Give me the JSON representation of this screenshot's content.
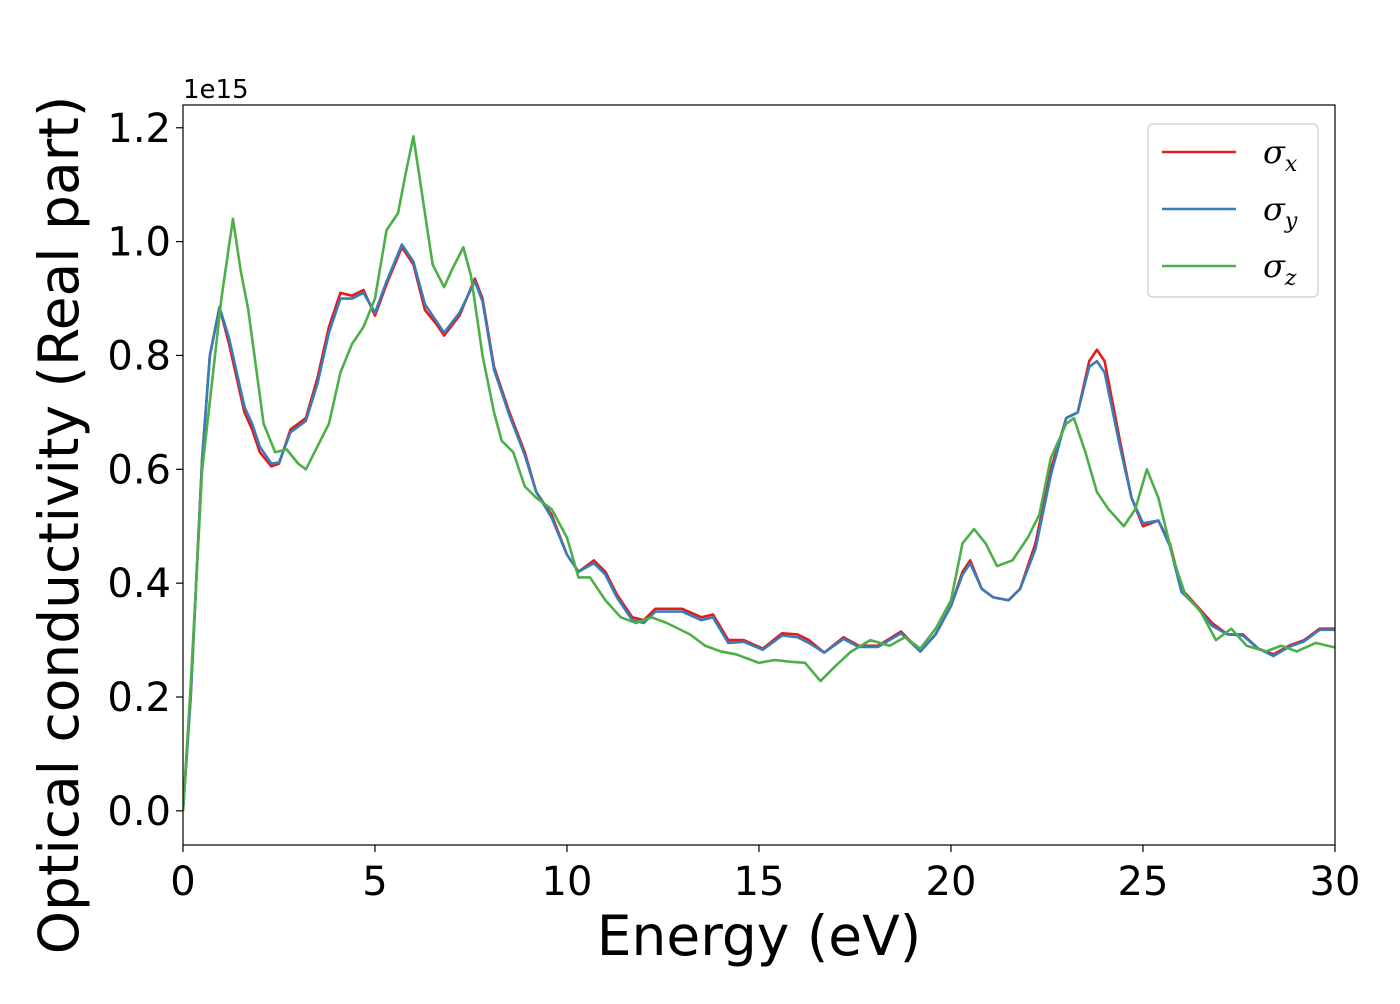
{
  "chart_data": {
    "type": "line",
    "xlabel": "Energy (eV)",
    "ylabel": "Optical conductivity (Real part)",
    "y_offset_label": "1e15",
    "xlim": [
      0,
      30
    ],
    "ylim": [
      -0.06,
      1.24
    ],
    "x_ticks": [
      0,
      5,
      10,
      15,
      20,
      25,
      30
    ],
    "x_tick_labels": [
      "0",
      "5",
      "10",
      "15",
      "20",
      "25",
      "30"
    ],
    "y_ticks": [
      0.0,
      0.2,
      0.4,
      0.6,
      0.8,
      1.0,
      1.2
    ],
    "y_tick_labels": [
      "0.0",
      "0.2",
      "0.4",
      "0.6",
      "0.8",
      "1.0",
      "1.2"
    ],
    "grid": false,
    "legend_position": "top-right",
    "series": [
      {
        "name": "σx",
        "label_main": "σ",
        "label_sub": "x",
        "color": "#e41a1c",
        "points": [
          [
            0,
            0
          ],
          [
            0.2,
            0.2
          ],
          [
            0.5,
            0.62
          ],
          [
            0.7,
            0.8
          ],
          [
            0.95,
            0.885
          ],
          [
            1.2,
            0.82
          ],
          [
            1.6,
            0.7
          ],
          [
            1.8,
            0.67
          ],
          [
            2.0,
            0.63
          ],
          [
            2.3,
            0.605
          ],
          [
            2.5,
            0.61
          ],
          [
            2.8,
            0.67
          ],
          [
            3.2,
            0.69
          ],
          [
            3.5,
            0.76
          ],
          [
            3.8,
            0.85
          ],
          [
            4.1,
            0.91
          ],
          [
            4.4,
            0.905
          ],
          [
            4.7,
            0.915
          ],
          [
            5.0,
            0.87
          ],
          [
            5.3,
            0.925
          ],
          [
            5.7,
            0.99
          ],
          [
            6.0,
            0.96
          ],
          [
            6.3,
            0.88
          ],
          [
            6.6,
            0.855
          ],
          [
            6.8,
            0.835
          ],
          [
            7.2,
            0.87
          ],
          [
            7.6,
            0.935
          ],
          [
            7.8,
            0.9
          ],
          [
            8.1,
            0.78
          ],
          [
            8.5,
            0.7
          ],
          [
            8.9,
            0.63
          ],
          [
            9.2,
            0.56
          ],
          [
            9.6,
            0.52
          ],
          [
            10.0,
            0.45
          ],
          [
            10.3,
            0.42
          ],
          [
            10.7,
            0.44
          ],
          [
            11.0,
            0.42
          ],
          [
            11.3,
            0.38
          ],
          [
            11.7,
            0.34
          ],
          [
            12.0,
            0.335
          ],
          [
            12.3,
            0.355
          ],
          [
            13.0,
            0.355
          ],
          [
            13.5,
            0.34
          ],
          [
            13.8,
            0.345
          ],
          [
            14.2,
            0.3
          ],
          [
            14.6,
            0.3
          ],
          [
            15.1,
            0.285
          ],
          [
            15.6,
            0.312
          ],
          [
            16.0,
            0.31
          ],
          [
            16.3,
            0.3
          ],
          [
            16.7,
            0.278
          ],
          [
            17.2,
            0.305
          ],
          [
            17.6,
            0.29
          ],
          [
            18.1,
            0.29
          ],
          [
            18.7,
            0.315
          ],
          [
            19.2,
            0.28
          ],
          [
            19.6,
            0.31
          ],
          [
            20.0,
            0.36
          ],
          [
            20.3,
            0.42
          ],
          [
            20.5,
            0.44
          ],
          [
            20.8,
            0.39
          ],
          [
            21.1,
            0.375
          ],
          [
            21.5,
            0.37
          ],
          [
            21.8,
            0.39
          ],
          [
            22.2,
            0.47
          ],
          [
            22.6,
            0.6
          ],
          [
            23.0,
            0.69
          ],
          [
            23.3,
            0.7
          ],
          [
            23.6,
            0.79
          ],
          [
            23.8,
            0.81
          ],
          [
            24.0,
            0.79
          ],
          [
            24.4,
            0.65
          ],
          [
            24.7,
            0.55
          ],
          [
            25.0,
            0.5
          ],
          [
            25.4,
            0.51
          ],
          [
            25.7,
            0.47
          ],
          [
            26.0,
            0.39
          ],
          [
            26.4,
            0.36
          ],
          [
            26.8,
            0.33
          ],
          [
            27.2,
            0.31
          ],
          [
            27.6,
            0.31
          ],
          [
            28.0,
            0.285
          ],
          [
            28.4,
            0.275
          ],
          [
            28.8,
            0.29
          ],
          [
            29.2,
            0.3
          ],
          [
            29.6,
            0.32
          ],
          [
            30.0,
            0.32
          ]
        ]
      },
      {
        "name": "σy",
        "label_main": "σ",
        "label_sub": "y",
        "color": "#377eb8",
        "points": [
          [
            0,
            0
          ],
          [
            0.2,
            0.2
          ],
          [
            0.5,
            0.62
          ],
          [
            0.7,
            0.8
          ],
          [
            0.95,
            0.885
          ],
          [
            1.2,
            0.83
          ],
          [
            1.6,
            0.71
          ],
          [
            1.8,
            0.68
          ],
          [
            2.0,
            0.64
          ],
          [
            2.3,
            0.61
          ],
          [
            2.5,
            0.612
          ],
          [
            2.8,
            0.665
          ],
          [
            3.2,
            0.685
          ],
          [
            3.5,
            0.75
          ],
          [
            3.8,
            0.84
          ],
          [
            4.1,
            0.9
          ],
          [
            4.4,
            0.9
          ],
          [
            4.7,
            0.91
          ],
          [
            5.0,
            0.875
          ],
          [
            5.3,
            0.93
          ],
          [
            5.7,
            0.995
          ],
          [
            6.0,
            0.965
          ],
          [
            6.3,
            0.89
          ],
          [
            6.6,
            0.86
          ],
          [
            6.8,
            0.84
          ],
          [
            7.2,
            0.875
          ],
          [
            7.6,
            0.93
          ],
          [
            7.8,
            0.895
          ],
          [
            8.1,
            0.775
          ],
          [
            8.5,
            0.695
          ],
          [
            8.9,
            0.625
          ],
          [
            9.2,
            0.56
          ],
          [
            9.6,
            0.515
          ],
          [
            10.0,
            0.45
          ],
          [
            10.3,
            0.42
          ],
          [
            10.7,
            0.435
          ],
          [
            11.0,
            0.415
          ],
          [
            11.3,
            0.375
          ],
          [
            11.7,
            0.335
          ],
          [
            12.0,
            0.33
          ],
          [
            12.3,
            0.35
          ],
          [
            13.0,
            0.35
          ],
          [
            13.5,
            0.335
          ],
          [
            13.8,
            0.34
          ],
          [
            14.2,
            0.295
          ],
          [
            14.6,
            0.297
          ],
          [
            15.1,
            0.283
          ],
          [
            15.6,
            0.308
          ],
          [
            16.0,
            0.305
          ],
          [
            16.3,
            0.295
          ],
          [
            16.7,
            0.278
          ],
          [
            17.2,
            0.302
          ],
          [
            17.6,
            0.288
          ],
          [
            18.1,
            0.288
          ],
          [
            18.7,
            0.312
          ],
          [
            19.2,
            0.28
          ],
          [
            19.6,
            0.31
          ],
          [
            20.0,
            0.36
          ],
          [
            20.3,
            0.415
          ],
          [
            20.5,
            0.435
          ],
          [
            20.8,
            0.39
          ],
          [
            21.1,
            0.375
          ],
          [
            21.5,
            0.37
          ],
          [
            21.8,
            0.39
          ],
          [
            22.2,
            0.46
          ],
          [
            22.6,
            0.59
          ],
          [
            23.0,
            0.69
          ],
          [
            23.3,
            0.7
          ],
          [
            23.6,
            0.78
          ],
          [
            23.8,
            0.79
          ],
          [
            24.0,
            0.77
          ],
          [
            24.4,
            0.64
          ],
          [
            24.7,
            0.55
          ],
          [
            25.0,
            0.505
          ],
          [
            25.4,
            0.51
          ],
          [
            25.7,
            0.465
          ],
          [
            26.0,
            0.385
          ],
          [
            26.4,
            0.358
          ],
          [
            26.8,
            0.325
          ],
          [
            27.2,
            0.31
          ],
          [
            27.6,
            0.308
          ],
          [
            28.0,
            0.285
          ],
          [
            28.4,
            0.272
          ],
          [
            28.8,
            0.288
          ],
          [
            29.2,
            0.298
          ],
          [
            29.6,
            0.318
          ],
          [
            30.0,
            0.318
          ]
        ]
      },
      {
        "name": "σz",
        "label_main": "σ",
        "label_sub": "z",
        "color": "#4daf4a",
        "points": [
          [
            0,
            0
          ],
          [
            0.2,
            0.22
          ],
          [
            0.5,
            0.6
          ],
          [
            0.8,
            0.78
          ],
          [
            1.0,
            0.9
          ],
          [
            1.3,
            1.04
          ],
          [
            1.5,
            0.95
          ],
          [
            1.7,
            0.88
          ],
          [
            1.9,
            0.78
          ],
          [
            2.1,
            0.68
          ],
          [
            2.4,
            0.63
          ],
          [
            2.7,
            0.635
          ],
          [
            3.0,
            0.61
          ],
          [
            3.2,
            0.6
          ],
          [
            3.5,
            0.64
          ],
          [
            3.8,
            0.68
          ],
          [
            4.1,
            0.77
          ],
          [
            4.4,
            0.82
          ],
          [
            4.7,
            0.85
          ],
          [
            5.0,
            0.9
          ],
          [
            5.3,
            1.02
          ],
          [
            5.6,
            1.05
          ],
          [
            5.8,
            1.12
          ],
          [
            6.0,
            1.185
          ],
          [
            6.3,
            1.05
          ],
          [
            6.5,
            0.96
          ],
          [
            6.8,
            0.92
          ],
          [
            7.0,
            0.95
          ],
          [
            7.3,
            0.99
          ],
          [
            7.5,
            0.94
          ],
          [
            7.8,
            0.8
          ],
          [
            8.1,
            0.7
          ],
          [
            8.3,
            0.65
          ],
          [
            8.6,
            0.63
          ],
          [
            8.9,
            0.57
          ],
          [
            9.2,
            0.55
          ],
          [
            9.6,
            0.53
          ],
          [
            10.0,
            0.48
          ],
          [
            10.3,
            0.41
          ],
          [
            10.6,
            0.41
          ],
          [
            11.0,
            0.37
          ],
          [
            11.4,
            0.34
          ],
          [
            11.8,
            0.33
          ],
          [
            12.2,
            0.34
          ],
          [
            12.6,
            0.33
          ],
          [
            13.2,
            0.31
          ],
          [
            13.6,
            0.29
          ],
          [
            14.0,
            0.28
          ],
          [
            14.4,
            0.275
          ],
          [
            15.0,
            0.26
          ],
          [
            15.4,
            0.265
          ],
          [
            15.8,
            0.262
          ],
          [
            16.2,
            0.26
          ],
          [
            16.6,
            0.228
          ],
          [
            17.0,
            0.255
          ],
          [
            17.4,
            0.28
          ],
          [
            17.9,
            0.3
          ],
          [
            18.4,
            0.29
          ],
          [
            18.8,
            0.305
          ],
          [
            19.2,
            0.285
          ],
          [
            19.6,
            0.32
          ],
          [
            20.0,
            0.37
          ],
          [
            20.3,
            0.47
          ],
          [
            20.6,
            0.495
          ],
          [
            20.9,
            0.47
          ],
          [
            21.2,
            0.43
          ],
          [
            21.6,
            0.44
          ],
          [
            22.0,
            0.48
          ],
          [
            22.3,
            0.52
          ],
          [
            22.6,
            0.62
          ],
          [
            23.0,
            0.68
          ],
          [
            23.2,
            0.69
          ],
          [
            23.5,
            0.63
          ],
          [
            23.8,
            0.56
          ],
          [
            24.1,
            0.53
          ],
          [
            24.5,
            0.5
          ],
          [
            24.8,
            0.53
          ],
          [
            25.1,
            0.6
          ],
          [
            25.4,
            0.55
          ],
          [
            25.8,
            0.44
          ],
          [
            26.1,
            0.38
          ],
          [
            26.5,
            0.35
          ],
          [
            26.9,
            0.3
          ],
          [
            27.3,
            0.32
          ],
          [
            27.7,
            0.29
          ],
          [
            28.2,
            0.28
          ],
          [
            28.6,
            0.29
          ],
          [
            29.0,
            0.28
          ],
          [
            29.5,
            0.295
          ],
          [
            30.0,
            0.287
          ]
        ]
      }
    ]
  }
}
